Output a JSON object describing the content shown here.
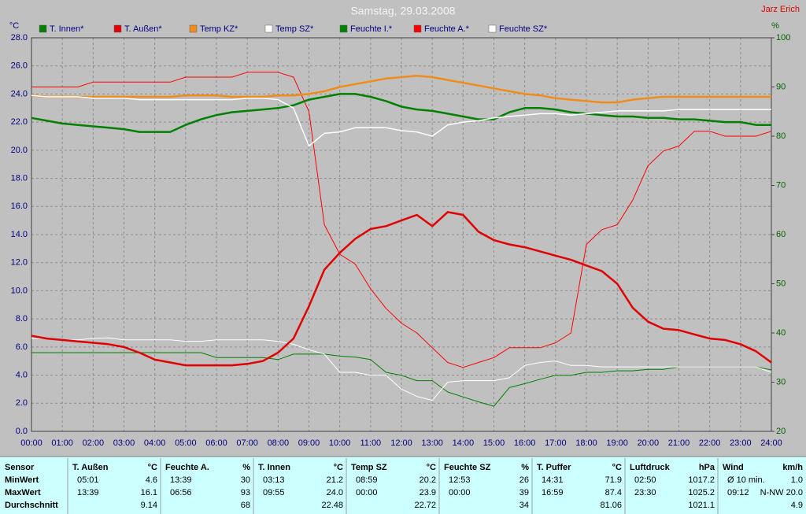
{
  "chart_data": {
    "type": "line",
    "title": "Samstag, 29.03.2008",
    "credit": "Jarz Erich",
    "y_label": "°C",
    "y2_label": "%",
    "xlim": [
      0,
      24
    ],
    "ylim": [
      0,
      28
    ],
    "y2lim": [
      20,
      100
    ],
    "grid": true,
    "legend": "top",
    "xticks": [
      {
        "value": 0,
        "label": "00:00"
      },
      {
        "value": 1,
        "label": "01:00"
      },
      {
        "value": 2,
        "label": "02:00"
      },
      {
        "value": 3,
        "label": "03:00"
      },
      {
        "value": 4,
        "label": "04:00"
      },
      {
        "value": 5,
        "label": "05:00"
      },
      {
        "value": 6,
        "label": "06:00"
      },
      {
        "value": 7,
        "label": "07:00"
      },
      {
        "value": 8,
        "label": "08:00"
      },
      {
        "value": 9,
        "label": "09:00"
      },
      {
        "value": 10,
        "label": "10:00"
      },
      {
        "value": 11,
        "label": "11:00"
      },
      {
        "value": 12,
        "label": "12:00"
      },
      {
        "value": 13,
        "label": "13:00"
      },
      {
        "value": 14,
        "label": "14:00"
      },
      {
        "value": 15,
        "label": "15:00"
      },
      {
        "value": 16,
        "label": "16:00"
      },
      {
        "value": 17,
        "label": "17:00"
      },
      {
        "value": 18,
        "label": "18:00"
      },
      {
        "value": 19,
        "label": "19:00"
      },
      {
        "value": 20,
        "label": "20:00"
      },
      {
        "value": 21,
        "label": "21:00"
      },
      {
        "value": 22,
        "label": "22:00"
      },
      {
        "value": 23,
        "label": "23:00"
      },
      {
        "value": 24,
        "label": "24:00"
      }
    ],
    "yticks": [
      {
        "value": 0,
        "label": "0.0"
      },
      {
        "value": 2,
        "label": "2.0"
      },
      {
        "value": 4,
        "label": "4.0"
      },
      {
        "value": 6,
        "label": "6.0"
      },
      {
        "value": 8,
        "label": "8.0"
      },
      {
        "value": 10,
        "label": "10.0"
      },
      {
        "value": 12,
        "label": "12.0"
      },
      {
        "value": 14,
        "label": "14.0"
      },
      {
        "value": 16,
        "label": "16.0"
      },
      {
        "value": 18,
        "label": "18.0"
      },
      {
        "value": 20,
        "label": "20.0"
      },
      {
        "value": 22,
        "label": "22.0"
      },
      {
        "value": 24,
        "label": "24.0"
      },
      {
        "value": 26,
        "label": "26.0"
      },
      {
        "value": 28,
        "label": "28.0"
      }
    ],
    "y2ticks": [
      20,
      30,
      40,
      50,
      60,
      70,
      80,
      90,
      100
    ],
    "x": [
      0,
      0.5,
      1,
      1.5,
      2,
      2.5,
      3,
      3.5,
      4,
      4.5,
      5,
      5.5,
      6,
      6.5,
      7,
      7.5,
      8,
      8.5,
      9,
      9.5,
      10,
      10.5,
      11,
      11.5,
      12,
      12.5,
      13,
      13.5,
      14,
      14.5,
      15,
      15.5,
      16,
      16.5,
      17,
      17.5,
      18,
      18.5,
      19,
      19.5,
      20,
      20.5,
      21,
      21.5,
      22,
      22.5,
      23,
      23.5,
      24
    ],
    "series": [
      {
        "name": "T. Innen*",
        "color": "#008000",
        "line_width": 2.5,
        "values": [
          22.3,
          22.1,
          21.9,
          21.8,
          21.7,
          21.6,
          21.5,
          21.3,
          21.3,
          21.3,
          21.8,
          22.2,
          22.5,
          22.7,
          22.8,
          22.9,
          23.0,
          23.2,
          23.6,
          23.8,
          24.0,
          24.0,
          23.8,
          23.5,
          23.1,
          22.9,
          22.8,
          22.6,
          22.4,
          22.2,
          22.2,
          22.7,
          23.0,
          23.0,
          22.9,
          22.7,
          22.6,
          22.5,
          22.4,
          22.4,
          22.3,
          22.3,
          22.2,
          22.2,
          22.1,
          22.0,
          22.0,
          21.8,
          21.8
        ]
      },
      {
        "name": "T. Außen*",
        "color": "#e00000",
        "line_width": 2.5,
        "values": [
          6.8,
          6.6,
          6.5,
          6.4,
          6.3,
          6.2,
          6.0,
          5.6,
          5.1,
          4.9,
          4.7,
          4.7,
          4.7,
          4.7,
          4.8,
          5.0,
          5.6,
          6.6,
          8.9,
          11.5,
          12.7,
          13.7,
          14.4,
          14.6,
          15.0,
          15.4,
          14.6,
          15.6,
          15.4,
          14.2,
          13.6,
          13.3,
          13.1,
          12.8,
          12.5,
          12.2,
          11.8,
          11.4,
          10.5,
          8.8,
          7.8,
          7.3,
          7.2,
          6.9,
          6.6,
          6.5,
          6.2,
          5.7,
          4.9
        ]
      },
      {
        "name": "Temp KZ*",
        "color": "#f08c1a",
        "line_width": 2.5,
        "values": [
          23.9,
          23.8,
          23.8,
          23.8,
          23.8,
          23.8,
          23.8,
          23.8,
          23.8,
          23.8,
          23.9,
          23.9,
          23.9,
          23.8,
          23.8,
          23.8,
          23.9,
          23.9,
          24.0,
          24.2,
          24.5,
          24.7,
          24.9,
          25.1,
          25.2,
          25.3,
          25.2,
          25.0,
          24.8,
          24.6,
          24.4,
          24.2,
          24.0,
          23.9,
          23.7,
          23.6,
          23.5,
          23.4,
          23.4,
          23.6,
          23.7,
          23.8,
          23.8,
          23.8,
          23.8,
          23.8,
          23.8,
          23.8,
          23.8
        ]
      },
      {
        "name": "Temp SZ*",
        "color": "#ffffff",
        "line_width": 1.5,
        "values": [
          23.9,
          23.8,
          23.8,
          23.8,
          23.7,
          23.7,
          23.7,
          23.6,
          23.6,
          23.6,
          23.6,
          23.6,
          23.6,
          23.6,
          23.7,
          23.7,
          23.6,
          23.0,
          20.3,
          21.2,
          21.3,
          21.6,
          21.6,
          21.6,
          21.4,
          21.3,
          21.0,
          21.8,
          22.0,
          22.1,
          22.3,
          22.4,
          22.5,
          22.6,
          22.6,
          22.5,
          22.6,
          22.7,
          22.8,
          22.8,
          22.8,
          22.8,
          22.9,
          22.9,
          22.9,
          22.9,
          22.9,
          22.9,
          22.9
        ]
      },
      {
        "name": "Feuchte I.*",
        "color": "#008000",
        "line_width": 1,
        "axis": "y2",
        "values": [
          36,
          36,
          36,
          36,
          36,
          36,
          36,
          36,
          36,
          36,
          36,
          36,
          35,
          35,
          35,
          35,
          34.6,
          35.7,
          35.7,
          35.7,
          35.3,
          35.1,
          34.6,
          32,
          31.4,
          30.3,
          30.3,
          28,
          27,
          26,
          25.1,
          28.9,
          29.7,
          30.6,
          31.4,
          31.4,
          32,
          32,
          32.3,
          32.3,
          32.6,
          32.6,
          33.1,
          33.1,
          33.1,
          33.1,
          33.1,
          33.1,
          32.5
        ]
      },
      {
        "name": "Feuchte A.*",
        "color": "#ff0000",
        "line_width": 1,
        "axis": "y2",
        "values": [
          90,
          90,
          90,
          90,
          91,
          91,
          91,
          91,
          91,
          91,
          92,
          92,
          92,
          92,
          93,
          93,
          93,
          92,
          85,
          62,
          56,
          54,
          49,
          45,
          42,
          40,
          37,
          34,
          33,
          34,
          35,
          37,
          37,
          37,
          38,
          40,
          58,
          61,
          62,
          67,
          74,
          77,
          78,
          81,
          81,
          80,
          80,
          80,
          81
        ]
      },
      {
        "name": "Feuchte SZ*",
        "color": "#ffffff",
        "line_width": 1,
        "axis": "y2",
        "values": [
          38.9,
          38.9,
          38.6,
          38.6,
          38.9,
          39,
          38.6,
          38.6,
          38.6,
          38.6,
          38.3,
          38.3,
          38.6,
          38.6,
          38.6,
          38.6,
          38.3,
          37.7,
          36.6,
          35.7,
          32,
          32,
          31.4,
          31.4,
          28.6,
          27.1,
          26.3,
          30,
          30.3,
          30.3,
          30.3,
          30.9,
          33.4,
          34,
          34.3,
          33.4,
          33.4,
          33.1,
          33.1,
          33.1,
          33.1,
          33.1,
          33.1,
          33.1,
          33.1,
          33.1,
          33.1,
          33.1,
          32
        ]
      }
    ]
  },
  "stats": {
    "header": "Sensor",
    "row_labels": [
      "MinWert",
      "MaxWert",
      "Durchschnitt"
    ],
    "groups": [
      {
        "name": "T. Außen",
        "unit": "°C",
        "min": [
          "05:01",
          "4.6"
        ],
        "max": [
          "13:39",
          "16.1"
        ],
        "avg": "9.14"
      },
      {
        "name": "Feuchte A.",
        "unit": "%",
        "min": [
          "13:39",
          "30"
        ],
        "max": [
          "06:56",
          "93"
        ],
        "avg": "68"
      },
      {
        "name": "T. Innen",
        "unit": "°C",
        "min": [
          "03:13",
          "21.2"
        ],
        "max": [
          "09:55",
          "24.0"
        ],
        "avg": "22.48"
      },
      {
        "name": "Temp SZ",
        "unit": "°C",
        "min": [
          "08:59",
          "20.2"
        ],
        "max": [
          "00:00",
          "23.9"
        ],
        "avg": "22.72"
      },
      {
        "name": "Feuchte SZ",
        "unit": "%",
        "min": [
          "12:53",
          "26"
        ],
        "max": [
          "00:00",
          "39"
        ],
        "avg": "34"
      },
      {
        "name": "T. Puffer",
        "unit": "°C",
        "min": [
          "14:31",
          "71.9"
        ],
        "max": [
          "16:59",
          "87.4"
        ],
        "avg": "81.06"
      },
      {
        "name": "Luftdruck",
        "unit": "hPa",
        "min": [
          "02:50",
          "1017.2"
        ],
        "max": [
          "23:30",
          "1025.2"
        ],
        "avg": "1021.1"
      },
      {
        "name": "Wind",
        "unit": "km/h",
        "min": [
          "Ø 10 min.",
          "1.0"
        ],
        "max": [
          "09:12",
          "N-NW 20.0"
        ],
        "avg": "4.9"
      }
    ]
  }
}
